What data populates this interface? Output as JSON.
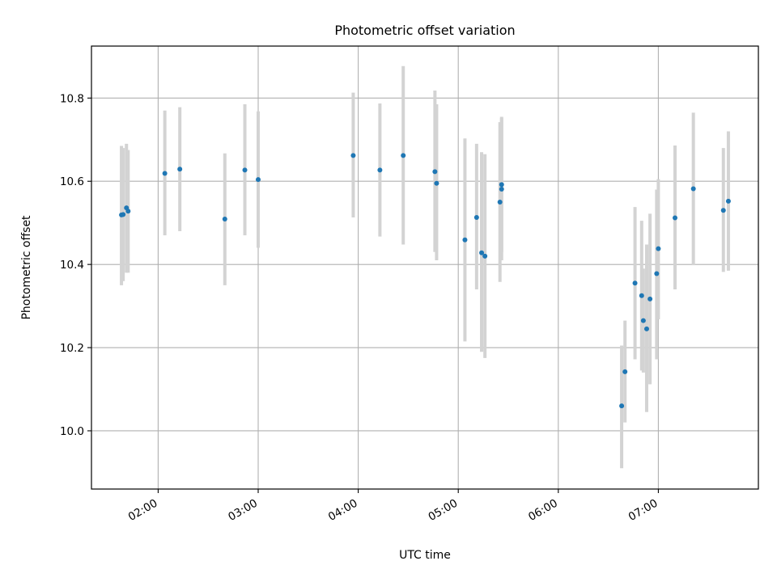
{
  "chart_data": {
    "type": "scatter",
    "title": "Photometric offset variation",
    "xlabel": "UTC time",
    "ylabel": "Photometric offset",
    "x_unit": "UTC time (HH:MM)",
    "xlim": [
      "01:20",
      "08:00"
    ],
    "ylim": [
      9.86,
      10.925
    ],
    "x_ticks": [
      "02:00",
      "03:00",
      "04:00",
      "05:00",
      "06:00",
      "07:00"
    ],
    "y_ticks": [
      "10.0",
      "10.2",
      "10.4",
      "10.6",
      "10.8"
    ],
    "grid": true,
    "legend": "none",
    "colors": {
      "marker": "#1f77b4",
      "errorbar": "#d3d3d3",
      "grid": "#b0b0b0",
      "axes": "#000000"
    },
    "points": [
      {
        "t": "01:38",
        "y": 10.519,
        "lo": 10.35,
        "hi": 10.685
      },
      {
        "t": "01:39",
        "y": 10.52,
        "lo": 10.36,
        "hi": 10.68
      },
      {
        "t": "01:41",
        "y": 10.536,
        "lo": 10.38,
        "hi": 10.69
      },
      {
        "t": "01:42",
        "y": 10.528,
        "lo": 10.38,
        "hi": 10.675
      },
      {
        "t": "02:04",
        "y": 10.619,
        "lo": 10.47,
        "hi": 10.77
      },
      {
        "t": "02:13",
        "y": 10.629,
        "lo": 10.48,
        "hi": 10.778
      },
      {
        "t": "02:40",
        "y": 10.509,
        "lo": 10.35,
        "hi": 10.667
      },
      {
        "t": "02:52",
        "y": 10.627,
        "lo": 10.47,
        "hi": 10.785
      },
      {
        "t": "03:00",
        "y": 10.604,
        "lo": 10.44,
        "hi": 10.768
      },
      {
        "t": "03:57",
        "y": 10.662,
        "lo": 10.513,
        "hi": 10.813
      },
      {
        "t": "04:13",
        "y": 10.627,
        "lo": 10.467,
        "hi": 10.787
      },
      {
        "t": "04:27",
        "y": 10.662,
        "lo": 10.448,
        "hi": 10.877
      },
      {
        "t": "04:46",
        "y": 10.623,
        "lo": 10.43,
        "hi": 10.818
      },
      {
        "t": "04:47",
        "y": 10.595,
        "lo": 10.41,
        "hi": 10.785
      },
      {
        "t": "05:04",
        "y": 10.459,
        "lo": 10.215,
        "hi": 10.703
      },
      {
        "t": "05:11",
        "y": 10.513,
        "lo": 10.34,
        "hi": 10.69
      },
      {
        "t": "05:14",
        "y": 10.428,
        "lo": 10.19,
        "hi": 10.67
      },
      {
        "t": "05:16",
        "y": 10.42,
        "lo": 10.175,
        "hi": 10.665
      },
      {
        "t": "05:25",
        "y": 10.55,
        "lo": 10.358,
        "hi": 10.742
      },
      {
        "t": "05:26",
        "y": 10.581,
        "lo": 10.41,
        "hi": 10.752
      },
      {
        "t": "05:26",
        "y": 10.592,
        "lo": 10.43,
        "hi": 10.755
      },
      {
        "t": "06:38",
        "y": 10.06,
        "lo": 9.91,
        "hi": 10.205
      },
      {
        "t": "06:40",
        "y": 10.142,
        "lo": 10.02,
        "hi": 10.265
      },
      {
        "t": "06:46",
        "y": 10.355,
        "lo": 10.172,
        "hi": 10.538
      },
      {
        "t": "06:50",
        "y": 10.325,
        "lo": 10.145,
        "hi": 10.505
      },
      {
        "t": "06:51",
        "y": 10.265,
        "lo": 10.14,
        "hi": 10.39
      },
      {
        "t": "06:53",
        "y": 10.245,
        "lo": 10.045,
        "hi": 10.448
      },
      {
        "t": "06:55",
        "y": 10.317,
        "lo": 10.112,
        "hi": 10.522
      },
      {
        "t": "06:59",
        "y": 10.378,
        "lo": 10.172,
        "hi": 10.58
      },
      {
        "t": "07:00",
        "y": 10.438,
        "lo": 10.268,
        "hi": 10.605
      },
      {
        "t": "07:10",
        "y": 10.512,
        "lo": 10.34,
        "hi": 10.686
      },
      {
        "t": "07:21",
        "y": 10.582,
        "lo": 10.398,
        "hi": 10.765
      },
      {
        "t": "07:39",
        "y": 10.53,
        "lo": 10.382,
        "hi": 10.68
      },
      {
        "t": "07:42",
        "y": 10.552,
        "lo": 10.385,
        "hi": 10.72
      }
    ]
  }
}
